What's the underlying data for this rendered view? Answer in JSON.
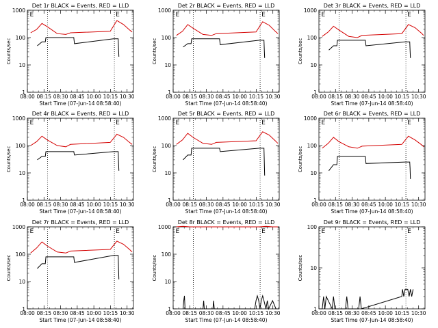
{
  "chart_data": [
    {
      "type": "line",
      "title": "Det 1r BLACK = Events, RED = LLD",
      "xlabel": "Start Time (07-Jun-14 08:58:40)",
      "ylabel": "Counts/sec",
      "ylog": true,
      "ylim": [
        1,
        1000
      ],
      "xlim": [
        "08:00",
        "10:40"
      ],
      "xticks": [
        "08:00",
        "08:15",
        "08:30",
        "08:45",
        "10:00",
        "10:15",
        "10:30"
      ],
      "yticks": [
        "1",
        "10",
        "100",
        "1000"
      ],
      "marker_label": "E",
      "series": [
        {
          "color": "#d40000",
          "x": [
            "08:05",
            "08:14",
            "08:22",
            "08:30",
            "08:45",
            "08:58",
            "09:05",
            "10:05",
            "10:15",
            "10:25",
            "10:34",
            "10:38"
          ],
          "y": [
            150,
            200,
            330,
            250,
            140,
            130,
            150,
            170,
            420,
            300,
            190,
            160
          ]
        },
        {
          "color": "#000000",
          "x": [
            "08:15",
            "08:22",
            "08:27",
            "08:28",
            "08:45",
            "09:10",
            "09:11",
            "10:10",
            "10:17",
            "10:17.5",
            "10:18"
          ],
          "y": [
            50,
            70,
            70,
            100,
            100,
            100,
            60,
            90,
            90,
            40,
            20
          ]
        }
      ]
    },
    {
      "type": "line",
      "title": "Det 2r BLACK = Events, RED = LLD",
      "xlabel": "Start Time (07-Jun-14 08:58:40)",
      "ylabel": "Counts/sec",
      "ylog": true,
      "ylim": [
        1,
        1000
      ],
      "xlim": [
        "08:00",
        "10:40"
      ],
      "xticks": [
        "08:00",
        "08:15",
        "08:30",
        "08:45",
        "10:00",
        "10:15",
        "10:30"
      ],
      "yticks": [
        "1",
        "10",
        "100",
        "1000"
      ],
      "marker_label": "E",
      "series": [
        {
          "color": "#d40000",
          "x": [
            "08:05",
            "08:14",
            "08:22",
            "08:30",
            "08:45",
            "08:58",
            "09:05",
            "10:05",
            "10:15",
            "10:25",
            "10:34",
            "10:38"
          ],
          "y": [
            120,
            170,
            300,
            220,
            130,
            120,
            140,
            160,
            380,
            280,
            170,
            140
          ]
        },
        {
          "color": "#000000",
          "x": [
            "08:15",
            "08:22",
            "08:27",
            "08:28",
            "08:45",
            "09:10",
            "09:11",
            "10:10",
            "10:17",
            "10:17.5",
            "10:18"
          ],
          "y": [
            45,
            60,
            60,
            90,
            90,
            90,
            55,
            80,
            80,
            35,
            18
          ]
        }
      ]
    },
    {
      "type": "line",
      "title": "Det 3r BLACK = Events, RED = LLD",
      "xlabel": "Start Time (07-Jun-14 08:58:40)",
      "ylabel": "Counts/sec",
      "ylog": true,
      "ylim": [
        1,
        1000
      ],
      "xlim": [
        "08:00",
        "10:40"
      ],
      "xticks": [
        "08:00",
        "08:15",
        "08:30",
        "08:45",
        "10:00",
        "10:15",
        "10:30"
      ],
      "yticks": [
        "1",
        "10",
        "100",
        "1000"
      ],
      "marker_label": "E",
      "series": [
        {
          "color": "#d40000",
          "x": [
            "08:05",
            "08:14",
            "08:22",
            "08:30",
            "08:45",
            "08:58",
            "09:05",
            "10:05",
            "10:15",
            "10:25",
            "10:34",
            "10:38"
          ],
          "y": [
            110,
            160,
            260,
            190,
            110,
            100,
            120,
            140,
            300,
            230,
            150,
            120
          ]
        },
        {
          "color": "#000000",
          "x": [
            "08:15",
            "08:22",
            "08:27",
            "08:28",
            "08:45",
            "09:10",
            "09:11",
            "10:10",
            "10:17",
            "10:17.5",
            "10:18"
          ],
          "y": [
            35,
            50,
            50,
            80,
            80,
            80,
            50,
            70,
            70,
            35,
            18
          ]
        }
      ]
    },
    {
      "type": "line",
      "title": "Det 4r BLACK = Events, RED = LLD",
      "xlabel": "Start Time (07-Jun-14 08:58:40)",
      "ylabel": "Counts/sec",
      "ylog": true,
      "ylim": [
        1,
        1000
      ],
      "xlim": [
        "08:00",
        "10:40"
      ],
      "xticks": [
        "08:00",
        "08:15",
        "08:30",
        "08:45",
        "10:00",
        "10:15",
        "10:30"
      ],
      "yticks": [
        "1",
        "10",
        "100",
        "1000"
      ],
      "marker_label": "E",
      "series": [
        {
          "color": "#d40000",
          "x": [
            "08:05",
            "08:14",
            "08:22",
            "08:30",
            "08:45",
            "08:58",
            "09:05",
            "10:05",
            "10:15",
            "10:25",
            "10:34",
            "10:38"
          ],
          "y": [
            100,
            140,
            220,
            160,
            100,
            90,
            110,
            130,
            260,
            200,
            130,
            110
          ]
        },
        {
          "color": "#000000",
          "x": [
            "08:15",
            "08:22",
            "08:27",
            "08:28",
            "08:45",
            "09:10",
            "09:11",
            "10:10",
            "10:17",
            "10:17.5",
            "10:18"
          ],
          "y": [
            30,
            40,
            40,
            60,
            60,
            60,
            45,
            60,
            60,
            25,
            12
          ]
        }
      ]
    },
    {
      "type": "line",
      "title": "Det 5r BLACK = Events, RED = LLD",
      "xlabel": "Start Time (07-Jun-14 08:58:40)",
      "ylabel": "Counts/sec",
      "ylog": true,
      "ylim": [
        1,
        1000
      ],
      "xlim": [
        "08:00",
        "10:40"
      ],
      "xticks": [
        "08:00",
        "08:15",
        "08:30",
        "08:45",
        "10:00",
        "10:15",
        "10:30"
      ],
      "yticks": [
        "1",
        "10",
        "100",
        "1000"
      ],
      "marker_label": "E",
      "series": [
        {
          "color": "#d40000",
          "x": [
            "08:05",
            "08:14",
            "08:22",
            "08:30",
            "08:45",
            "08:58",
            "09:05",
            "10:05",
            "10:15",
            "10:25",
            "10:34",
            "10:38"
          ],
          "y": [
            110,
            160,
            280,
            200,
            120,
            110,
            130,
            150,
            320,
            240,
            150,
            120
          ]
        },
        {
          "color": "#000000",
          "x": [
            "08:15",
            "08:22",
            "08:27",
            "08:28",
            "08:45",
            "09:10",
            "09:11",
            "10:10",
            "10:17",
            "10:17.5",
            "10:18"
          ],
          "y": [
            30,
            45,
            45,
            80,
            80,
            80,
            60,
            80,
            80,
            25,
            8
          ]
        }
      ]
    },
    {
      "type": "line",
      "title": "Det 6r BLACK = Events, RED = LLD",
      "xlabel": "Start Time (07-Jun-14 08:58:40)",
      "ylabel": "Counts/sec",
      "ylog": true,
      "ylim": [
        1,
        1000
      ],
      "xlim": [
        "08:00",
        "10:40"
      ],
      "xticks": [
        "08:00",
        "08:15",
        "08:30",
        "08:45",
        "10:00",
        "10:15",
        "10:30"
      ],
      "yticks": [
        "1",
        "10",
        "100",
        "1000"
      ],
      "marker_label": "E",
      "series": [
        {
          "color": "#d40000",
          "x": [
            "08:05",
            "08:14",
            "08:22",
            "08:30",
            "08:45",
            "08:58",
            "09:05",
            "10:05",
            "10:15",
            "10:25",
            "10:34",
            "10:38"
          ],
          "y": [
            80,
            120,
            200,
            140,
            90,
            80,
            95,
            110,
            220,
            160,
            110,
            90
          ]
        },
        {
          "color": "#000000",
          "x": [
            "08:15",
            "08:22",
            "08:27",
            "08:28",
            "08:45",
            "09:10",
            "09:11",
            "10:10",
            "10:17",
            "10:17.5",
            "10:18"
          ],
          "y": [
            12,
            20,
            20,
            40,
            40,
            40,
            22,
            25,
            25,
            15,
            6
          ]
        }
      ]
    },
    {
      "type": "line",
      "title": "Det 7r BLACK = Events, RED = LLD",
      "xlabel": "Start Time (07-Jun-14 08:58:40)",
      "ylabel": "Counts/sec",
      "ylog": true,
      "ylim": [
        1,
        1000
      ],
      "xlim": [
        "08:00",
        "10:40"
      ],
      "xticks": [
        "08:00",
        "08:15",
        "08:30",
        "08:45",
        "10:00",
        "10:15",
        "10:30"
      ],
      "yticks": [
        "1",
        "10",
        "100",
        "1000"
      ],
      "marker_label": "E",
      "series": [
        {
          "color": "#d40000",
          "x": [
            "08:05",
            "08:14",
            "08:22",
            "08:30",
            "08:45",
            "08:58",
            "09:05",
            "10:05",
            "10:15",
            "10:25",
            "10:34",
            "10:38"
          ],
          "y": [
            110,
            170,
            280,
            200,
            120,
            110,
            130,
            150,
            300,
            230,
            150,
            120
          ]
        },
        {
          "color": "#000000",
          "x": [
            "08:15",
            "08:22",
            "08:27",
            "08:28",
            "08:45",
            "09:10",
            "09:11",
            "10:10",
            "10:17",
            "10:17.5",
            "10:18"
          ],
          "y": [
            30,
            45,
            45,
            80,
            80,
            80,
            50,
            90,
            90,
            30,
            12
          ]
        }
      ]
    },
    {
      "type": "line",
      "title": "Det 8r BLACK = Events, RED = LLD",
      "xlabel": "Start Time (07-Jun-14 08:58:40)",
      "ylabel": "Counts/sec",
      "ylog": true,
      "ylim": [
        1,
        1000
      ],
      "xlim": [
        "08:00",
        "10:40"
      ],
      "xticks": [
        "08:00",
        "08:15",
        "08:30",
        "08:45",
        "10:00",
        "10:15",
        "10:30"
      ],
      "yticks": [
        "1",
        "10",
        "100",
        "1000"
      ],
      "marker_label": "E",
      "series": [
        {
          "color": "#d40000",
          "x": [
            "08:05",
            "08:15",
            "08:25",
            "08:45",
            "10:10",
            "10:20",
            "10:30",
            "10:38"
          ],
          "y": [
            1000,
            1050,
            1000,
            1000,
            1000,
            1050,
            1000,
            1000
          ]
        },
        {
          "color": "#000000",
          "x": [
            "08:15",
            "08:16",
            "08:17",
            "08:18",
            "08:45",
            "08:46",
            "08:47",
            "09:00",
            "09:01",
            "09:02",
            "10:03",
            "10:05",
            "10:07",
            "10:09",
            "10:11",
            "10:13",
            "10:15",
            "10:17",
            "10:20",
            "10:22",
            "10:24",
            "10:30",
            "10:35"
          ],
          "y": [
            1,
            2,
            3,
            1,
            1,
            2,
            1,
            1,
            2,
            1,
            1,
            2,
            3,
            2,
            1,
            2,
            3,
            2,
            1,
            2,
            1,
            2,
            1
          ]
        }
      ]
    },
    {
      "type": "line",
      "title": "Det 9r BLACK = Events, RED = LLD",
      "xlabel": "Start Time (07-Jun-14 08:58:40)",
      "ylabel": "Counts/sec",
      "ylog": true,
      "ylim": [
        1,
        100
      ],
      "xlim": [
        "08:00",
        "10:40"
      ],
      "xticks": [
        "08:00",
        "08:15",
        "08:30",
        "08:45",
        "10:00",
        "10:15",
        "10:30"
      ],
      "yticks": [
        "1",
        "10",
        "100"
      ],
      "marker_label": "E",
      "series": [
        {
          "color": "#000000",
          "x": [
            "08:05",
            "08:07",
            "08:09",
            "08:11",
            "08:20",
            "08:22",
            "08:24",
            "08:40",
            "08:42",
            "08:44",
            "09:00",
            "09:02",
            "09:04",
            "10:05",
            "10:06",
            "10:08",
            "10:10",
            "10:14",
            "10:16",
            "10:18",
            "10:20",
            "10:22"
          ],
          "y": [
            1,
            2,
            1,
            2,
            1,
            2,
            1,
            1,
            2,
            1,
            1,
            2,
            1,
            2,
            3,
            2,
            3,
            3,
            2,
            3,
            2,
            3
          ]
        }
      ]
    }
  ]
}
